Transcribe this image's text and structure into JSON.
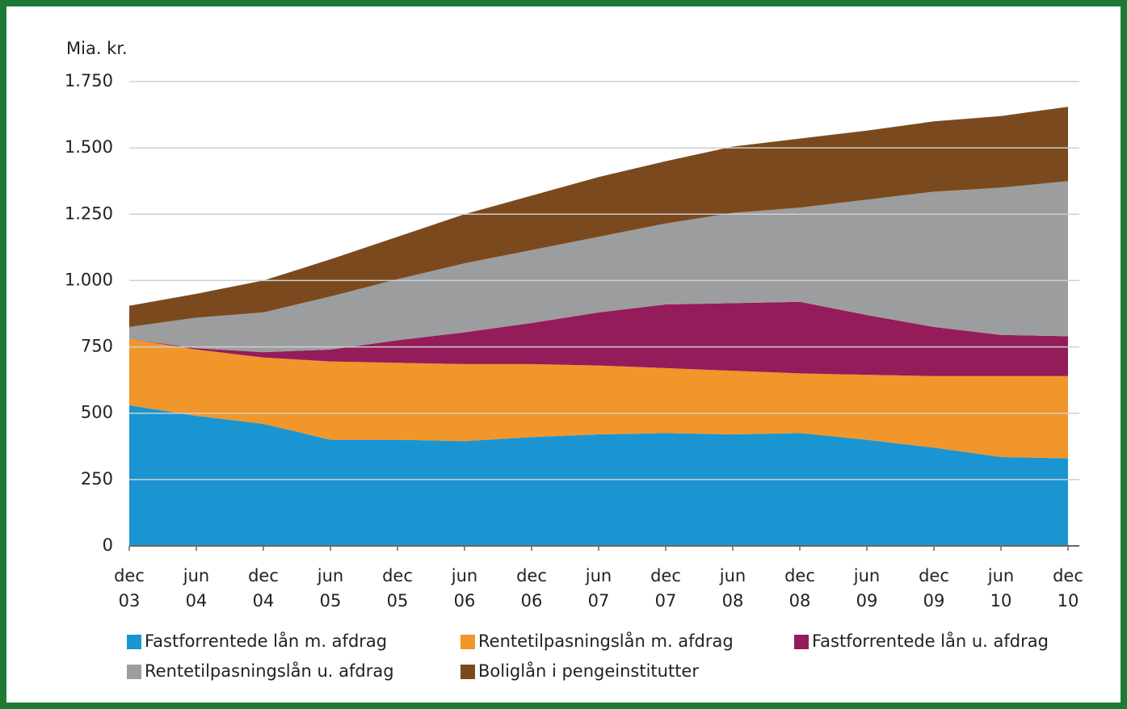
{
  "chart_data": {
    "type": "stacked_area",
    "y_unit_label": "Mia. kr.",
    "categories": [
      [
        "dec",
        "03"
      ],
      [
        "jun",
        "04"
      ],
      [
        "dec",
        "04"
      ],
      [
        "jun",
        "05"
      ],
      [
        "dec",
        "05"
      ],
      [
        "jun",
        "06"
      ],
      [
        "dec",
        "06"
      ],
      [
        "jun",
        "07"
      ],
      [
        "dec",
        "07"
      ],
      [
        "jun",
        "08"
      ],
      [
        "dec",
        "08"
      ],
      [
        "jun",
        "09"
      ],
      [
        "dec",
        "09"
      ],
      [
        "jun",
        "10"
      ],
      [
        "dec",
        "10"
      ]
    ],
    "series": [
      {
        "name": "Fastforrentede lån m. afdrag",
        "color": "#1b95d2",
        "values": [
          530,
          490,
          460,
          400,
          400,
          395,
          410,
          420,
          425,
          420,
          425,
          400,
          370,
          335,
          330
        ]
      },
      {
        "name": "Rentetilpasningslån m. afdrag",
        "color": "#f0962a",
        "values": [
          250,
          250,
          250,
          295,
          290,
          290,
          275,
          260,
          245,
          240,
          225,
          245,
          270,
          305,
          310
        ]
      },
      {
        "name": "Fastforrentede lån u. afdrag",
        "color": "#951c5a",
        "values": [
          0,
          5,
          20,
          45,
          85,
          120,
          155,
          200,
          240,
          255,
          270,
          225,
          185,
          155,
          150
        ]
      },
      {
        "name": "Rentetilpasningslån u. afdrag",
        "color": "#9c9d9f",
        "values": [
          45,
          115,
          150,
          200,
          230,
          260,
          275,
          285,
          305,
          340,
          355,
          435,
          510,
          555,
          585
        ]
      },
      {
        "name": "Boliglån i pengeinstitutter",
        "color": "#7a4a1e",
        "values": [
          80,
          90,
          120,
          140,
          160,
          185,
          205,
          225,
          235,
          250,
          260,
          260,
          265,
          270,
          280
        ]
      }
    ],
    "ylim": [
      0,
      1750
    ],
    "yticks": [
      0,
      250,
      500,
      750,
      {
        "value": 1000,
        "label": "1.000"
      },
      {
        "value": 1250,
        "label": "1.250"
      },
      {
        "value": 1500,
        "label": "1.500"
      },
      {
        "value": 1750,
        "label": "1.750"
      }
    ],
    "grid": true
  }
}
